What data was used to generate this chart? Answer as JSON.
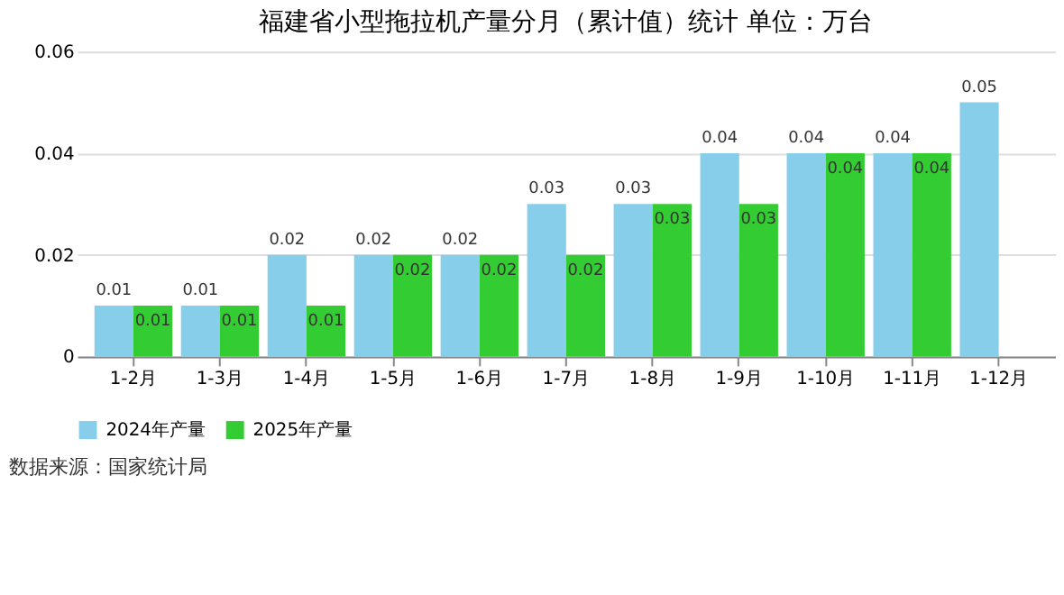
{
  "chart_data": {
    "type": "bar",
    "title": "福建省小型拖拉机产量分月（累计值）统计  单位：万台",
    "categories": [
      "1-2月",
      "1-3月",
      "1-4月",
      "1-5月",
      "1-6月",
      "1-7月",
      "1-8月",
      "1-9月",
      "1-10月",
      "1-11月",
      "1-12月"
    ],
    "series": [
      {
        "name": "2024年产量",
        "color": "#87ceeb",
        "values": [
          0.01,
          0.01,
          0.02,
          0.02,
          0.02,
          0.03,
          0.03,
          0.04,
          0.04,
          0.04,
          0.05
        ]
      },
      {
        "name": "2025年产量",
        "color": "#33cc33",
        "values": [
          0.01,
          0.01,
          0.01,
          0.02,
          0.02,
          0.02,
          0.03,
          0.03,
          0.04,
          0.04,
          null
        ]
      }
    ],
    "ylim": [
      0,
      0.06
    ],
    "yticks": [
      0,
      0.02,
      0.04,
      0.06
    ],
    "grid": "y",
    "legend": "bottom",
    "data_labels": true,
    "annotations": [
      "数据来源：国家统计局"
    ]
  }
}
